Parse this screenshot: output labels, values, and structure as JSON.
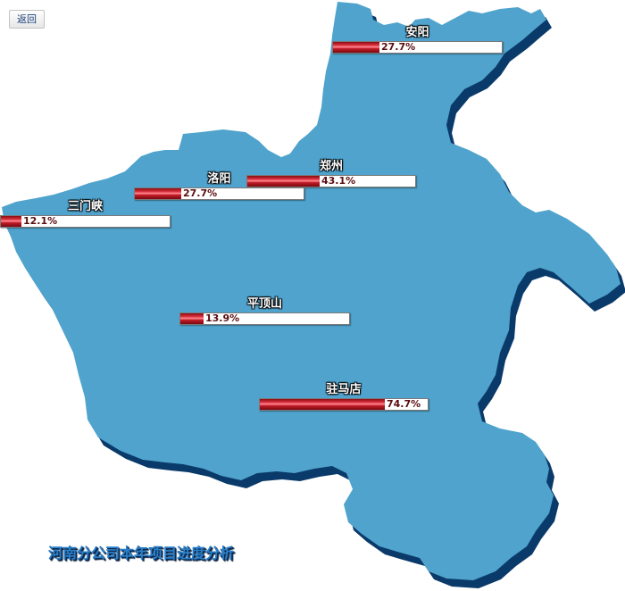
{
  "toolbar": {
    "back_label": "返回"
  },
  "map": {
    "title": "河南分公司本年项目进度分析",
    "region_color": "#4fa3cc",
    "shadow_color": "#0a3a6a",
    "cities": [
      {
        "id": "anyang",
        "name": "安阳",
        "value_label": "27.7%",
        "progress": 0.277
      },
      {
        "id": "zhengzhou",
        "name": "郑州",
        "value_label": "43.1%",
        "progress": 0.431
      },
      {
        "id": "luoyang",
        "name": "洛阳",
        "value_label": "27.7%",
        "progress": 0.277
      },
      {
        "id": "sanmenxia",
        "name": "三门峡",
        "value_label": "12.1%",
        "progress": 0.121
      },
      {
        "id": "pingdingshan",
        "name": "平顶山",
        "value_label": "13.9%",
        "progress": 0.139
      },
      {
        "id": "zhumadian",
        "name": "驻马店",
        "value_label": "74.7%",
        "progress": 0.747
      }
    ]
  }
}
